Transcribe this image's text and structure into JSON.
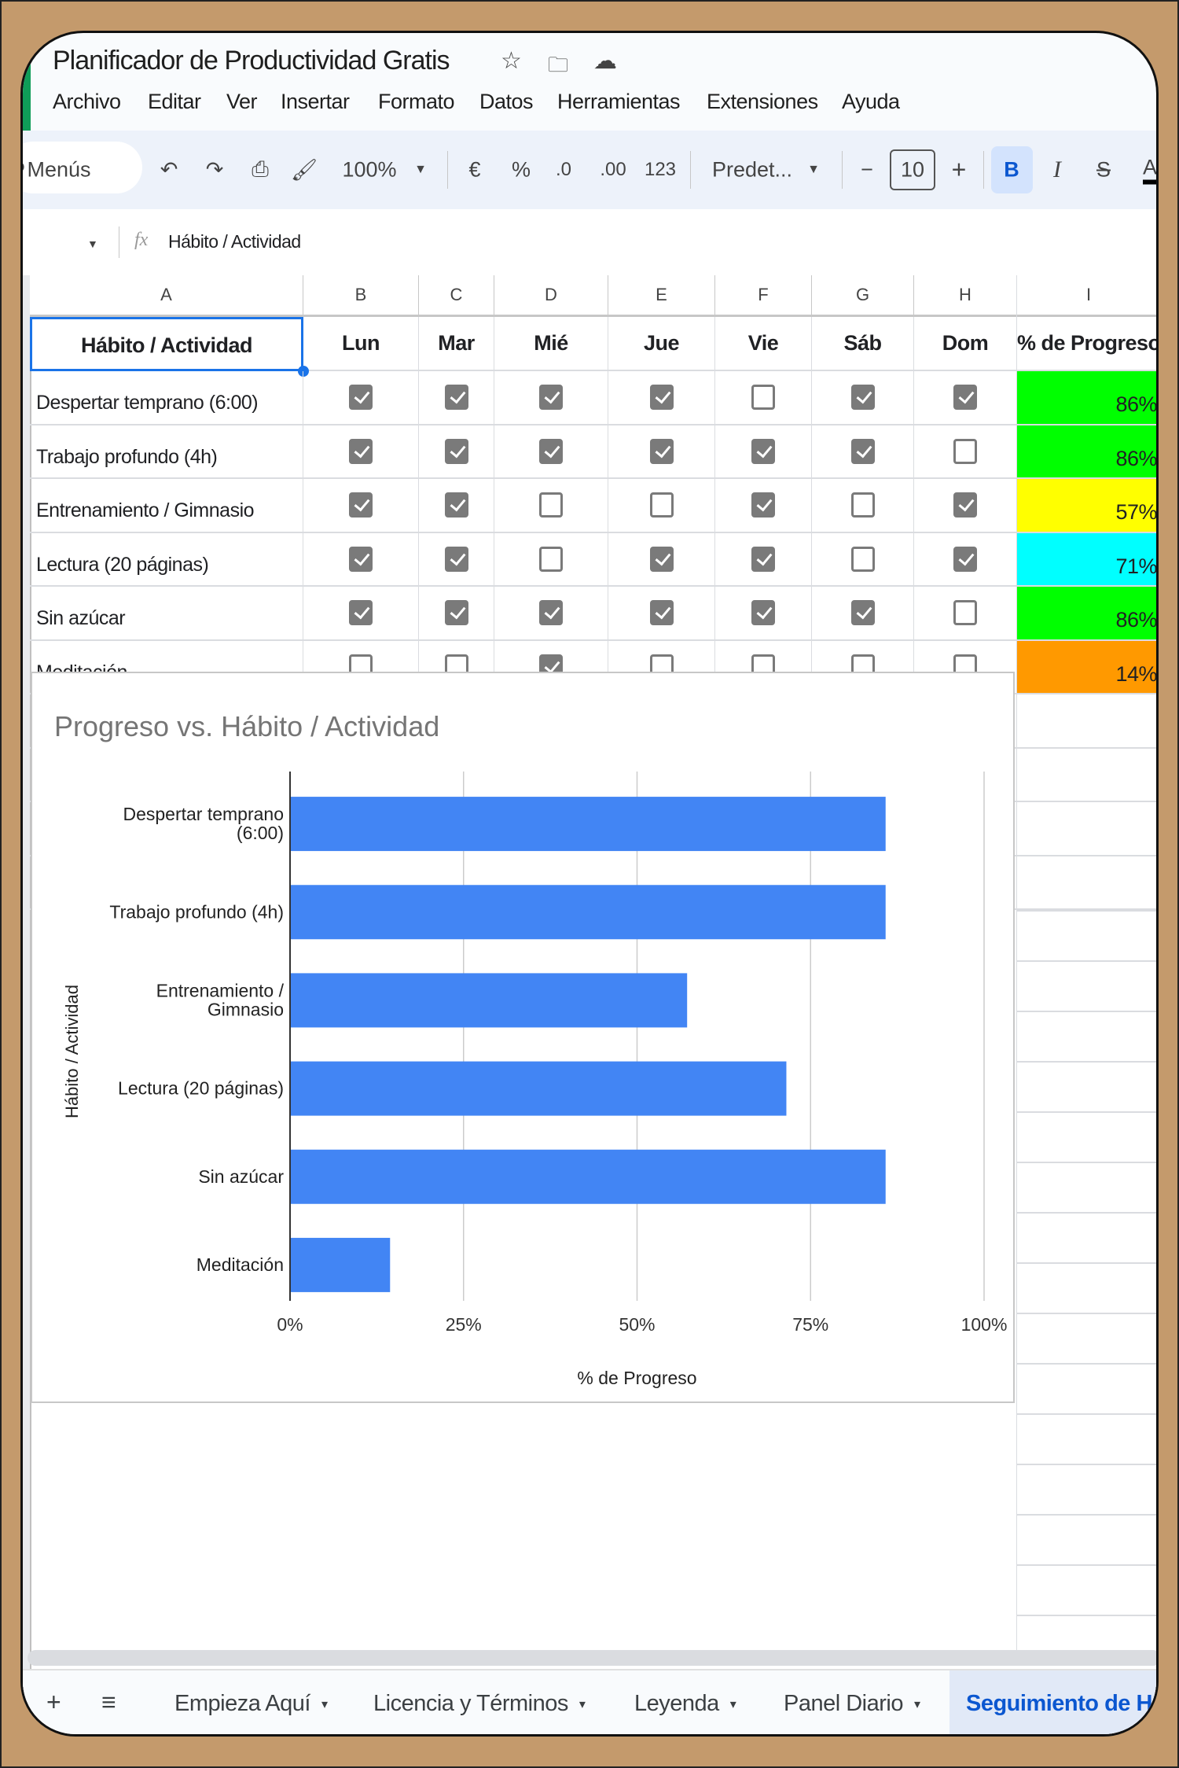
{
  "title": "Planificador de Productividad Gratis",
  "title_icons": [
    "star-icon",
    "move-to-folder-icon",
    "cloud-saved-icon"
  ],
  "menu": [
    "Archivo",
    "Editar",
    "Ver",
    "Insertar",
    "Formato",
    "Datos",
    "Herramientas",
    "Extensiones",
    "Ayuda"
  ],
  "toolbar": {
    "search_label": "Menús",
    "zoom": "100%",
    "currency": "€",
    "percent": "%",
    "dec_decrease": ".0",
    "dec_increase": ".00",
    "number_format": "123",
    "font": "Predet...",
    "font_size_minus": "−",
    "font_size": "10",
    "font_size_plus": "+",
    "bold": "B",
    "italic": "I",
    "strike": "S",
    "text_color": "A"
  },
  "formula_bar": {
    "fx": "fx",
    "value": "Hábito / Actividad"
  },
  "columns": [
    "A",
    "B",
    "C",
    "D",
    "E",
    "F",
    "G",
    "H",
    "I"
  ],
  "header": [
    "Hábito / Actividad",
    "Lun",
    "Mar",
    "Mié",
    "Jue",
    "Vie",
    "Sáb",
    "Dom",
    "% de Progreso"
  ],
  "rows": [
    {
      "habit": "Despertar temprano (6:00)",
      "checks": [
        true,
        true,
        true,
        true,
        false,
        true,
        true
      ],
      "progress": "86%",
      "color": "#00ff00"
    },
    {
      "habit": "Trabajo profundo (4h)",
      "checks": [
        true,
        true,
        true,
        true,
        true,
        true,
        false
      ],
      "progress": "86%",
      "color": "#00ff00"
    },
    {
      "habit": "Entrenamiento / Gimnasio",
      "checks": [
        true,
        true,
        false,
        false,
        true,
        false,
        true
      ],
      "progress": "57%",
      "color": "#ffff00"
    },
    {
      "habit": "Lectura (20 páginas)",
      "checks": [
        true,
        true,
        false,
        true,
        true,
        false,
        true
      ],
      "progress": "71%",
      "color": "#00ffff"
    },
    {
      "habit": "Sin azúcar",
      "checks": [
        true,
        true,
        true,
        true,
        true,
        true,
        false
      ],
      "progress": "86%",
      "color": "#00ff00"
    },
    {
      "habit": "Meditación",
      "checks": [
        false,
        false,
        true,
        false,
        false,
        false,
        false
      ],
      "progress": "14%",
      "color": "#ff9900"
    },
    {
      "habit": "",
      "checks": [
        false,
        false,
        false,
        false,
        false,
        false,
        false
      ],
      "progress": "",
      "color": ""
    },
    {
      "habit": "",
      "checks": [
        false,
        false,
        false,
        false,
        false,
        false,
        false
      ],
      "progress": "",
      "color": ""
    },
    {
      "habit": "",
      "checks": [
        false,
        false,
        false,
        false,
        false,
        false,
        false
      ],
      "progress": "",
      "color": ""
    },
    {
      "habit": "",
      "checks": [
        false,
        false,
        false,
        false,
        false,
        false,
        false
      ],
      "progress": "",
      "color": ""
    }
  ],
  "chart_data": {
    "type": "bar",
    "orientation": "horizontal",
    "title": "Progreso vs. Hábito / Actividad",
    "xlabel": "% de Progreso",
    "ylabel": "Hábito / Actividad",
    "categories": [
      "Despertar temprano (6:00)",
      "Trabajo profundo (4h)",
      "Entrenamiento / Gimnasio",
      "Lectura (20 páginas)",
      "Sin azúcar",
      "Meditación"
    ],
    "values": [
      85.7,
      85.7,
      57.1,
      71.4,
      85.7,
      14.3
    ],
    "xlim": [
      0,
      100
    ],
    "xticks": [
      "0%",
      "25%",
      "50%",
      "75%",
      "100%"
    ],
    "grid": true,
    "bar_color": "#4285f4"
  },
  "tabs": {
    "add": "+",
    "list": "≡",
    "items": [
      "Empieza Aquí",
      "Licencia y Términos",
      "Leyenda",
      "Panel Diario"
    ],
    "arrow": "▾",
    "active": "Seguimiento de Há"
  }
}
